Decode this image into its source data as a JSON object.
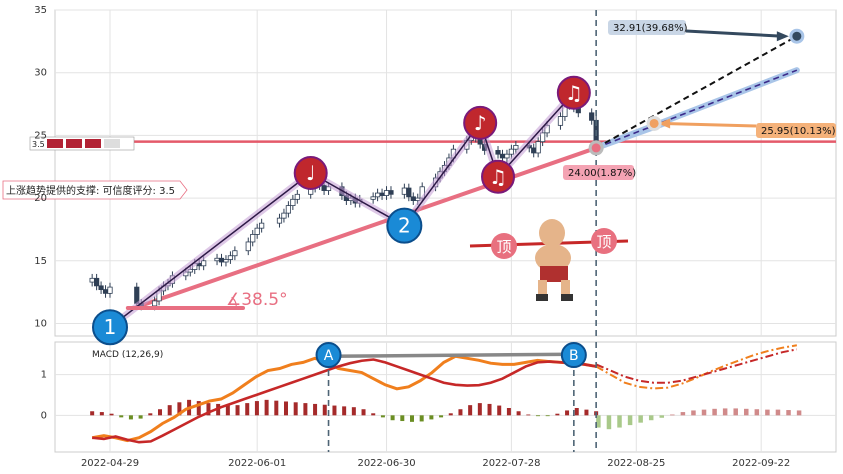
{
  "chart_data": {
    "type": "candlestick",
    "colors": {
      "up": "#c62828",
      "down": "#2f3f55",
      "trend": "#e06377",
      "resistance": "#e45a6a",
      "macd_line": "#c62828",
      "signal_line": "#f07f1d",
      "hist_pos": "#a52a2a",
      "hist_neg": "#6b8e23",
      "proj_blue": "#a9c5e8"
    },
    "price_axis": {
      "ylim": [
        9,
        35
      ],
      "ticks": [
        10,
        15,
        20,
        25,
        30,
        35
      ]
    },
    "x_axis": {
      "labels": [
        "2022-04-29",
        "2022-06-01",
        "2022-06-30",
        "2022-07-28",
        "2022-08-25",
        "2022-09-22"
      ]
    },
    "grid": true,
    "close_series": [
      {
        "x": "2022-04-25",
        "y": 13.6
      },
      {
        "x": "2022-04-26",
        "y": 13.0
      },
      {
        "x": "2022-04-27",
        "y": 12.7
      },
      {
        "x": "2022-04-28",
        "y": 12.4
      },
      {
        "x": "2022-04-29",
        "y": 12.9
      },
      {
        "x": "2022-05-05",
        "y": 11.6
      },
      {
        "x": "2022-05-06",
        "y": 11.4
      },
      {
        "x": "2022-05-09",
        "y": 11.8
      },
      {
        "x": "2022-05-10",
        "y": 12.6
      },
      {
        "x": "2022-05-11",
        "y": 13.0
      },
      {
        "x": "2022-05-12",
        "y": 13.2
      },
      {
        "x": "2022-05-13",
        "y": 13.8
      },
      {
        "x": "2022-05-16",
        "y": 14.1
      },
      {
        "x": "2022-05-17",
        "y": 14.3
      },
      {
        "x": "2022-05-18",
        "y": 14.8
      },
      {
        "x": "2022-05-19",
        "y": 14.6
      },
      {
        "x": "2022-05-20",
        "y": 15.0
      },
      {
        "x": "2022-05-23",
        "y": 15.2
      },
      {
        "x": "2022-05-24",
        "y": 14.9
      },
      {
        "x": "2022-05-25",
        "y": 15.1
      },
      {
        "x": "2022-05-26",
        "y": 15.4
      },
      {
        "x": "2022-05-27",
        "y": 15.8
      },
      {
        "x": "2022-05-30",
        "y": 16.5
      },
      {
        "x": "2022-05-31",
        "y": 17.1
      },
      {
        "x": "2022-06-01",
        "y": 17.6
      },
      {
        "x": "2022-06-02",
        "y": 18.0
      },
      {
        "x": "2022-06-06",
        "y": 18.4
      },
      {
        "x": "2022-06-07",
        "y": 18.8
      },
      {
        "x": "2022-06-08",
        "y": 19.4
      },
      {
        "x": "2022-06-09",
        "y": 19.9
      },
      {
        "x": "2022-06-10",
        "y": 20.3
      },
      {
        "x": "2022-06-13",
        "y": 20.8
      },
      {
        "x": "2022-06-14",
        "y": 21.1
      },
      {
        "x": "2022-06-15",
        "y": 21.0
      },
      {
        "x": "2022-06-16",
        "y": 20.6
      },
      {
        "x": "2022-06-17",
        "y": 20.9
      },
      {
        "x": "2022-06-20",
        "y": 20.2
      },
      {
        "x": "2022-06-21",
        "y": 19.8
      },
      {
        "x": "2022-06-22",
        "y": 20.0
      },
      {
        "x": "2022-06-23",
        "y": 19.6
      },
      {
        "x": "2022-06-24",
        "y": 19.9
      },
      {
        "x": "2022-06-27",
        "y": 20.1
      },
      {
        "x": "2022-06-28",
        "y": 20.4
      },
      {
        "x": "2022-06-29",
        "y": 20.2
      },
      {
        "x": "2022-06-30",
        "y": 20.6
      },
      {
        "x": "2022-07-01",
        "y": 20.3
      },
      {
        "x": "2022-07-04",
        "y": 20.8
      },
      {
        "x": "2022-07-05",
        "y": 20.1
      },
      {
        "x": "2022-07-06",
        "y": 19.8
      },
      {
        "x": "2022-07-07",
        "y": 20.0
      },
      {
        "x": "2022-07-08",
        "y": 20.9
      },
      {
        "x": "2022-07-11",
        "y": 21.6
      },
      {
        "x": "2022-07-12",
        "y": 22.1
      },
      {
        "x": "2022-07-13",
        "y": 22.6
      },
      {
        "x": "2022-07-14",
        "y": 23.2
      },
      {
        "x": "2022-07-15",
        "y": 23.9
      },
      {
        "x": "2022-07-18",
        "y": 24.6
      },
      {
        "x": "2022-07-19",
        "y": 25.3
      },
      {
        "x": "2022-07-20",
        "y": 24.8
      },
      {
        "x": "2022-07-21",
        "y": 24.3
      },
      {
        "x": "2022-07-22",
        "y": 23.8
      },
      {
        "x": "2022-07-25",
        "y": 23.5
      },
      {
        "x": "2022-07-26",
        "y": 23.2
      },
      {
        "x": "2022-07-27",
        "y": 23.5
      },
      {
        "x": "2022-07-28",
        "y": 23.9
      },
      {
        "x": "2022-07-29",
        "y": 24.2
      },
      {
        "x": "2022-08-01",
        "y": 24.0
      },
      {
        "x": "2022-08-02",
        "y": 23.6
      },
      {
        "x": "2022-08-03",
        "y": 24.5
      },
      {
        "x": "2022-08-04",
        "y": 25.2
      },
      {
        "x": "2022-08-05",
        "y": 25.8
      },
      {
        "x": "2022-08-08",
        "y": 26.5
      },
      {
        "x": "2022-08-09",
        "y": 27.4
      },
      {
        "x": "2022-08-10",
        "y": 27.7
      },
      {
        "x": "2022-08-11",
        "y": 27.2
      },
      {
        "x": "2022-08-12",
        "y": 26.8
      },
      {
        "x": "2022-08-15",
        "y": 26.2
      },
      {
        "x": "2022-08-16",
        "y": 24.0
      }
    ],
    "support_line": {
      "label": "上涨趋势提供的支撑: 可信度评分: 3.5",
      "from": {
        "x": "2022-05-05",
        "y": 11.3
      },
      "to": {
        "x": "2022-08-16",
        "y": 24.0
      }
    },
    "resistance_level": {
      "y": 24.5,
      "badge": "3.5"
    },
    "angle_label": "∡38.5°",
    "wave_points": [
      {
        "label": "1",
        "x": "2022-04-29",
        "y": 9.7
      },
      {
        "label": "2",
        "x": "2022-07-04",
        "y": 17.8
      },
      {
        "label": "♩",
        "x": "2022-06-13",
        "y": 22.0
      },
      {
        "label": "♪",
        "x": "2022-07-21",
        "y": 26.0
      },
      {
        "label": "♫",
        "x": "2022-07-25",
        "y": 21.7
      },
      {
        "label": "♫",
        "x": "2022-08-11",
        "y": 28.4
      }
    ],
    "projections": [
      {
        "label": "32.91(39.68%)",
        "x": "2022-09-30",
        "y": 32.91
      },
      {
        "label": "25.95(10.13%)",
        "x": "2022-08-29",
        "y": 25.95
      },
      {
        "label": "24.00(1.87%)",
        "x": "2022-08-16",
        "y": 24.0
      }
    ],
    "top_signal": {
      "label": "顶"
    },
    "macd": {
      "label": "MACD (12,26,9)",
      "ylim": [
        -0.9,
        1.8
      ],
      "ticks": [
        0,
        1
      ],
      "markers": [
        {
          "label": "A",
          "x": "2022-06-17"
        },
        {
          "label": "B",
          "x": "2022-08-11"
        }
      ],
      "macd_series": [
        -0.55,
        -0.58,
        -0.52,
        -0.6,
        -0.66,
        -0.64,
        -0.5,
        -0.35,
        -0.2,
        -0.05,
        0.08,
        0.2,
        0.3,
        0.4,
        0.5,
        0.6,
        0.7,
        0.8,
        0.9,
        1.0,
        1.1,
        1.2,
        1.28,
        1.34,
        1.37,
        1.3,
        1.2,
        1.1,
        1.0,
        0.9,
        0.8,
        0.75,
        0.73,
        0.74,
        0.8,
        0.9,
        1.05,
        1.2,
        1.3,
        1.32,
        1.3,
        1.28,
        1.25,
        1.2
      ],
      "signal_series": [
        -0.55,
        -0.5,
        -0.55,
        -0.62,
        -0.55,
        -0.4,
        -0.2,
        -0.05,
        0.15,
        0.25,
        0.35,
        0.4,
        0.55,
        0.75,
        0.95,
        1.1,
        1.15,
        1.25,
        1.3,
        1.4,
        1.3,
        1.15,
        1.1,
        1.05,
        0.9,
        0.75,
        0.65,
        0.7,
        0.85,
        1.05,
        1.3,
        1.45,
        1.4,
        1.35,
        1.28,
        1.25,
        1.25,
        1.3,
        1.35,
        1.32,
        1.3,
        1.28,
        1.25,
        1.2
      ],
      "histogram": [
        0.1,
        0.08,
        0.04,
        -0.05,
        -0.1,
        -0.08,
        0.05,
        0.15,
        0.25,
        0.32,
        0.38,
        0.35,
        0.3,
        0.28,
        0.26,
        0.25,
        0.3,
        0.35,
        0.38,
        0.36,
        0.34,
        0.32,
        0.3,
        0.28,
        0.26,
        0.24,
        0.22,
        0.2,
        0.15,
        0.05,
        -0.05,
        -0.12,
        -0.14,
        -0.16,
        -0.15,
        -0.1,
        -0.05,
        0.05,
        0.15,
        0.25,
        0.3,
        0.28,
        0.24,
        0.18,
        0.1,
        0.02,
        -0.02,
        -0.01,
        0.04,
        0.12,
        0.18,
        0.14,
        0.1
      ],
      "projected_macd": [
        1.25,
        1.1,
        0.95,
        0.85,
        0.8,
        0.8,
        0.85,
        0.95,
        1.05,
        1.15,
        1.25,
        1.35,
        1.45,
        1.55,
        1.62
      ],
      "projected_signal": [
        1.2,
        1.0,
        0.8,
        0.7,
        0.66,
        0.68,
        0.78,
        0.92,
        1.08,
        1.22,
        1.35,
        1.48,
        1.58,
        1.66,
        1.72
      ],
      "projected_histogram": [
        -0.3,
        -0.34,
        -0.3,
        -0.24,
        -0.18,
        -0.12,
        -0.06,
        0.02,
        0.08,
        0.12,
        0.14,
        0.16,
        0.17,
        0.17,
        0.16,
        0.15,
        0.14,
        0.14,
        0.13,
        0.12
      ]
    }
  }
}
